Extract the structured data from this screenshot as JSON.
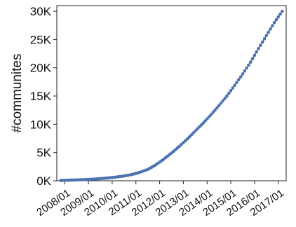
{
  "chart_data": {
    "type": "line",
    "ylabel": "#communites",
    "xlabel": "",
    "x_ticks": [
      "2008/01",
      "2009/01",
      "2010/01",
      "2011/01",
      "2012/01",
      "2013/01",
      "2014/01",
      "2015/01",
      "2016/01",
      "2017/01"
    ],
    "y_ticks": [
      "0K",
      "5K",
      "10K",
      "15K",
      "20K",
      "25K",
      "30K"
    ],
    "y_tick_values": [
      0,
      5000,
      10000,
      15000,
      20000,
      25000,
      30000
    ],
    "xlim": [
      "2007/09",
      "2017/05"
    ],
    "ylim": [
      0,
      31000
    ],
    "grid": false,
    "marker": "dot",
    "series_color": "#4c72b0",
    "series": [
      {
        "x": [
          "2007/11",
          "2008/03",
          "2008/07",
          "2008/11",
          "2009/03",
          "2009/07",
          "2009/11",
          "2010/03",
          "2010/07",
          "2010/11",
          "2011/03",
          "2011/07",
          "2011/11",
          "2012/03",
          "2012/07",
          "2012/11",
          "2013/03",
          "2013/07",
          "2013/11",
          "2014/03",
          "2014/07",
          "2014/11",
          "2015/03",
          "2015/07",
          "2015/11",
          "2016/03",
          "2016/07",
          "2016/11",
          "2017/03"
        ],
        "y": [
          50,
          100,
          150,
          200,
          280,
          380,
          500,
          650,
          850,
          1100,
          1500,
          2000,
          2800,
          3800,
          4900,
          6100,
          7400,
          8800,
          10200,
          11700,
          13300,
          15000,
          16900,
          18900,
          21000,
          23400,
          25700,
          28000,
          30000
        ]
      }
    ]
  }
}
